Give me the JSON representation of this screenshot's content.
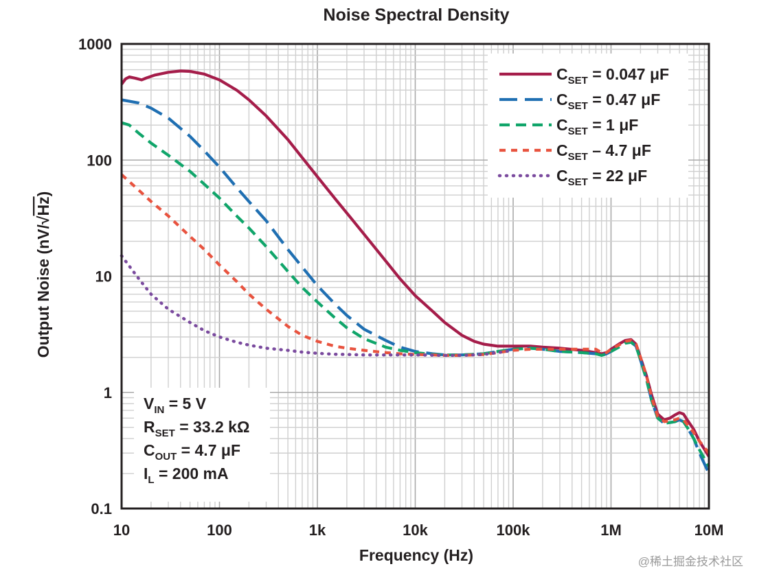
{
  "chart_data": {
    "type": "line",
    "title": "Noise Spectral Density",
    "xlabel": "Frequency (Hz)",
    "ylabel_prefix": "Output Noise (nV/",
    "ylabel_radical": "√",
    "ylabel_radicand": "Hz",
    "ylabel_suffix": ")",
    "xscale": "log",
    "yscale": "log",
    "xlim": [
      10,
      10000000
    ],
    "ylim": [
      0.1,
      1000
    ],
    "grid": true,
    "x_ticks": [
      {
        "value": 10,
        "label": "10"
      },
      {
        "value": 100,
        "label": "100"
      },
      {
        "value": 1000,
        "label": "1k"
      },
      {
        "value": 10000,
        "label": "10k"
      },
      {
        "value": 100000,
        "label": "100k"
      },
      {
        "value": 1000000,
        "label": "1M"
      },
      {
        "value": 10000000,
        "label": "10M"
      }
    ],
    "y_ticks": [
      {
        "value": 0.1,
        "label": "0.1"
      },
      {
        "value": 1,
        "label": "1"
      },
      {
        "value": 10,
        "label": "10"
      },
      {
        "value": 100,
        "label": "100"
      },
      {
        "value": 1000,
        "label": "1000"
      }
    ],
    "legend_position": "top-right",
    "series": [
      {
        "name": "C_SET = 0.047 μF",
        "label_main": "C",
        "label_sub": "SET",
        "label_rest": " = 0.047 μF",
        "color": "#a51d4a",
        "style": "solid",
        "points": [
          [
            10,
            450
          ],
          [
            11,
            500
          ],
          [
            12,
            520
          ],
          [
            14,
            505
          ],
          [
            16,
            490
          ],
          [
            18,
            510
          ],
          [
            22,
            540
          ],
          [
            30,
            570
          ],
          [
            40,
            585
          ],
          [
            50,
            580
          ],
          [
            70,
            550
          ],
          [
            100,
            490
          ],
          [
            150,
            400
          ],
          [
            200,
            330
          ],
          [
            300,
            240
          ],
          [
            500,
            150
          ],
          [
            700,
            105
          ],
          [
            1000,
            72
          ],
          [
            1500,
            47
          ],
          [
            2000,
            35
          ],
          [
            3000,
            23
          ],
          [
            5000,
            13.5
          ],
          [
            7000,
            9.5
          ],
          [
            10000,
            6.8
          ],
          [
            15000,
            5.0
          ],
          [
            20000,
            4.0
          ],
          [
            30000,
            3.1
          ],
          [
            40000,
            2.75
          ],
          [
            50000,
            2.6
          ],
          [
            70000,
            2.5
          ],
          [
            100000,
            2.5
          ],
          [
            150000,
            2.5
          ],
          [
            200000,
            2.45
          ],
          [
            300000,
            2.4
          ],
          [
            500000,
            2.3
          ],
          [
            700000,
            2.2
          ],
          [
            800000,
            2.15
          ],
          [
            900000,
            2.2
          ],
          [
            1000000,
            2.35
          ],
          [
            1200000,
            2.6
          ],
          [
            1400000,
            2.8
          ],
          [
            1600000,
            2.85
          ],
          [
            1800000,
            2.6
          ],
          [
            2000000,
            2.0
          ],
          [
            2300000,
            1.4
          ],
          [
            2600000,
            0.95
          ],
          [
            3000000,
            0.65
          ],
          [
            3500000,
            0.58
          ],
          [
            4000000,
            0.6
          ],
          [
            4500000,
            0.64
          ],
          [
            5000000,
            0.67
          ],
          [
            5500000,
            0.65
          ],
          [
            6000000,
            0.58
          ],
          [
            7000000,
            0.48
          ],
          [
            8000000,
            0.38
          ],
          [
            10000000,
            0.28
          ]
        ]
      },
      {
        "name": "C_SET = 0.47 μF",
        "label_main": "C",
        "label_sub": "SET",
        "label_rest": " = 0.47 μF",
        "color": "#1f6fb2",
        "style": "longdash",
        "points": [
          [
            10,
            330
          ],
          [
            15,
            310
          ],
          [
            20,
            280
          ],
          [
            30,
            230
          ],
          [
            50,
            160
          ],
          [
            70,
            120
          ],
          [
            100,
            87
          ],
          [
            150,
            58
          ],
          [
            200,
            44
          ],
          [
            300,
            30
          ],
          [
            500,
            17
          ],
          [
            700,
            12
          ],
          [
            1000,
            8.3
          ],
          [
            1500,
            5.8
          ],
          [
            2000,
            4.6
          ],
          [
            3000,
            3.5
          ],
          [
            5000,
            2.8
          ],
          [
            7000,
            2.45
          ],
          [
            10000,
            2.25
          ],
          [
            15000,
            2.15
          ],
          [
            20000,
            2.1
          ],
          [
            30000,
            2.1
          ],
          [
            50000,
            2.15
          ],
          [
            70000,
            2.25
          ],
          [
            100000,
            2.35
          ],
          [
            150000,
            2.4
          ],
          [
            200000,
            2.35
          ],
          [
            300000,
            2.25
          ],
          [
            500000,
            2.2
          ],
          [
            700000,
            2.15
          ],
          [
            800000,
            2.08
          ],
          [
            900000,
            2.15
          ],
          [
            1000000,
            2.25
          ],
          [
            1200000,
            2.45
          ],
          [
            1400000,
            2.65
          ],
          [
            1600000,
            2.7
          ],
          [
            1800000,
            2.5
          ],
          [
            2000000,
            1.9
          ],
          [
            2300000,
            1.3
          ],
          [
            2600000,
            0.85
          ],
          [
            3000000,
            0.6
          ],
          [
            3500000,
            0.54
          ],
          [
            4000000,
            0.55
          ],
          [
            4500000,
            0.56
          ],
          [
            5000000,
            0.58
          ],
          [
            5500000,
            0.56
          ],
          [
            6000000,
            0.5
          ],
          [
            7000000,
            0.4
          ],
          [
            8000000,
            0.3
          ],
          [
            10000000,
            0.2
          ]
        ]
      },
      {
        "name": "C_SET = 1 μF",
        "label_main": "C",
        "label_sub": "SET",
        "label_rest": " = 1 μF",
        "color": "#10a56a",
        "style": "dash",
        "points": [
          [
            10,
            210
          ],
          [
            12,
            200
          ],
          [
            15,
            170
          ],
          [
            20,
            140
          ],
          [
            30,
            110
          ],
          [
            50,
            80
          ],
          [
            70,
            62
          ],
          [
            100,
            47
          ],
          [
            150,
            33
          ],
          [
            200,
            26
          ],
          [
            300,
            18
          ],
          [
            500,
            11
          ],
          [
            700,
            8
          ],
          [
            1000,
            6
          ],
          [
            1500,
            4.4
          ],
          [
            2000,
            3.6
          ],
          [
            3000,
            2.9
          ],
          [
            5000,
            2.45
          ],
          [
            7000,
            2.3
          ],
          [
            10000,
            2.2
          ],
          [
            15000,
            2.12
          ],
          [
            20000,
            2.1
          ],
          [
            30000,
            2.1
          ],
          [
            50000,
            2.15
          ],
          [
            70000,
            2.25
          ],
          [
            100000,
            2.35
          ],
          [
            150000,
            2.4
          ],
          [
            200000,
            2.35
          ],
          [
            300000,
            2.25
          ],
          [
            500000,
            2.2
          ],
          [
            700000,
            2.15
          ],
          [
            800000,
            2.08
          ],
          [
            900000,
            2.15
          ],
          [
            1000000,
            2.25
          ],
          [
            1200000,
            2.45
          ],
          [
            1400000,
            2.65
          ],
          [
            1600000,
            2.7
          ],
          [
            1800000,
            2.5
          ],
          [
            2000000,
            1.9
          ],
          [
            2300000,
            1.3
          ],
          [
            2600000,
            0.85
          ],
          [
            3000000,
            0.6
          ],
          [
            3500000,
            0.54
          ],
          [
            4000000,
            0.55
          ],
          [
            4500000,
            0.56
          ],
          [
            5000000,
            0.58
          ],
          [
            5500000,
            0.56
          ],
          [
            6000000,
            0.5
          ],
          [
            7000000,
            0.4
          ],
          [
            8000000,
            0.32
          ],
          [
            10000000,
            0.23
          ]
        ]
      },
      {
        "name": "C_SET – 4.7 μF",
        "label_main": "C",
        "label_sub": "SET",
        "label_rest": " – 4.7 μF",
        "color": "#e8533f",
        "style": "shortdash",
        "points": [
          [
            10,
            75
          ],
          [
            15,
            55
          ],
          [
            20,
            44
          ],
          [
            30,
            33
          ],
          [
            50,
            22
          ],
          [
            70,
            17
          ],
          [
            100,
            12.5
          ],
          [
            150,
            9
          ],
          [
            200,
            7
          ],
          [
            300,
            5.2
          ],
          [
            500,
            3.7
          ],
          [
            700,
            3.1
          ],
          [
            1000,
            2.75
          ],
          [
            1500,
            2.5
          ],
          [
            2000,
            2.4
          ],
          [
            3000,
            2.3
          ],
          [
            5000,
            2.2
          ],
          [
            7000,
            2.15
          ],
          [
            10000,
            2.12
          ],
          [
            15000,
            2.1
          ],
          [
            20000,
            2.08
          ],
          [
            30000,
            2.08
          ],
          [
            50000,
            2.12
          ],
          [
            70000,
            2.2
          ],
          [
            100000,
            2.3
          ],
          [
            150000,
            2.35
          ],
          [
            200000,
            2.35
          ],
          [
            300000,
            2.35
          ],
          [
            500000,
            2.35
          ],
          [
            700000,
            2.35
          ],
          [
            800000,
            2.2
          ],
          [
            900000,
            2.2
          ],
          [
            1000000,
            2.35
          ],
          [
            1200000,
            2.55
          ],
          [
            1400000,
            2.75
          ],
          [
            1600000,
            2.8
          ],
          [
            1800000,
            2.6
          ],
          [
            2000000,
            2.0
          ],
          [
            2300000,
            1.4
          ],
          [
            2600000,
            0.9
          ],
          [
            3000000,
            0.62
          ],
          [
            3500000,
            0.56
          ],
          [
            4000000,
            0.57
          ],
          [
            4500000,
            0.58
          ],
          [
            5000000,
            0.6
          ],
          [
            5500000,
            0.58
          ],
          [
            6000000,
            0.53
          ],
          [
            7000000,
            0.45
          ],
          [
            8000000,
            0.38
          ],
          [
            10000000,
            0.3
          ]
        ]
      },
      {
        "name": "C_SET = 22 μF",
        "label_main": "C",
        "label_sub": "SET",
        "label_rest": " = 22 μF",
        "color": "#7a4a9e",
        "style": "dot",
        "points": [
          [
            10,
            15
          ],
          [
            15,
            9.5
          ],
          [
            20,
            7
          ],
          [
            30,
            5.2
          ],
          [
            50,
            4
          ],
          [
            70,
            3.4
          ],
          [
            100,
            3.0
          ],
          [
            150,
            2.7
          ],
          [
            200,
            2.55
          ],
          [
            300,
            2.4
          ],
          [
            500,
            2.3
          ],
          [
            700,
            2.22
          ],
          [
            1000,
            2.17
          ],
          [
            1500,
            2.13
          ],
          [
            2000,
            2.12
          ],
          [
            3000,
            2.1
          ],
          [
            5000,
            2.1
          ],
          [
            7000,
            2.1
          ],
          [
            10000,
            2.1
          ],
          [
            20000,
            2.08
          ],
          [
            30000,
            2.08
          ],
          [
            50000,
            2.12
          ],
          [
            70000,
            2.2
          ],
          [
            100000,
            2.3
          ]
        ]
      }
    ],
    "annotations": [
      {
        "main": "V",
        "sub": "IN",
        "rest": " = 5 V"
      },
      {
        "main": "R",
        "sub": "SET",
        "rest": " = 33.2 kΩ"
      },
      {
        "main": "C",
        "sub": "OUT",
        "rest": " = 4.7 μF"
      },
      {
        "main": "I",
        "sub": "L",
        "rest": " = 200 mA"
      }
    ]
  },
  "watermark": "@稀土掘金技术社区"
}
